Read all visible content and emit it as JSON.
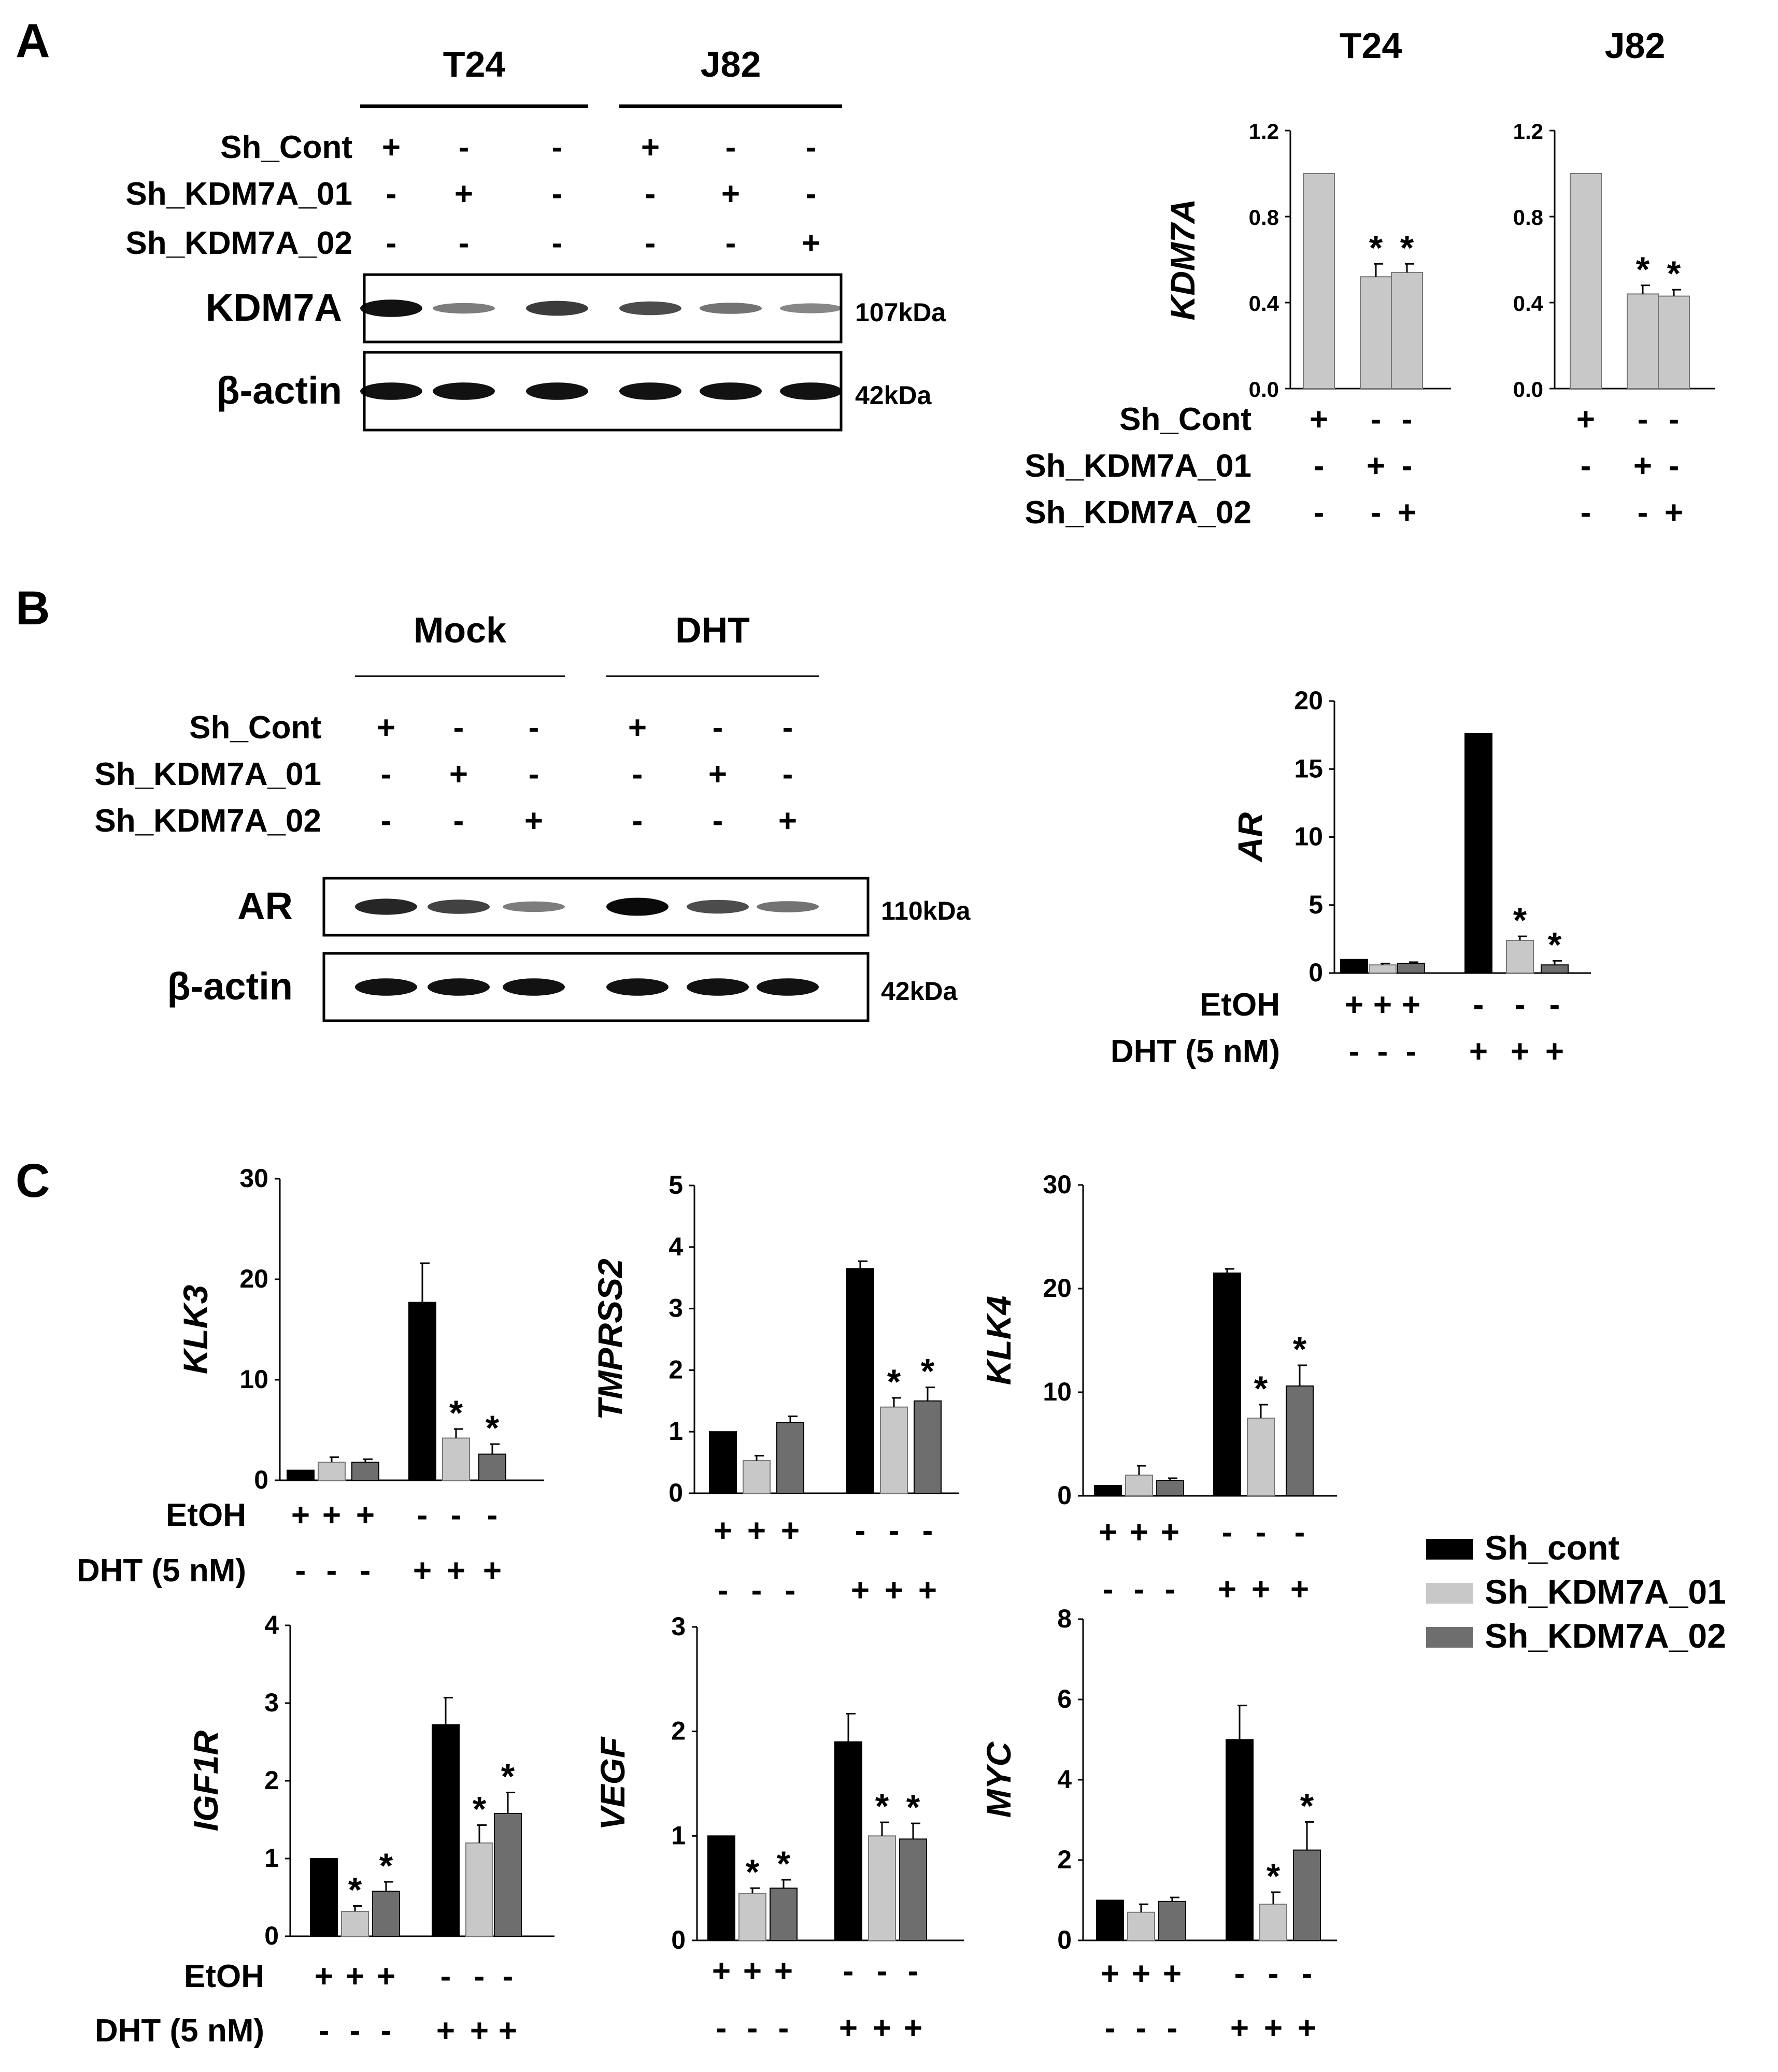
{
  "panels": {
    "A": {
      "letter": "A",
      "blot": {
        "groups": [
          {
            "label": "T24",
            "lanes": [
              0,
              1,
              2
            ]
          },
          {
            "label": "J82",
            "lanes": [
              3,
              4,
              5
            ]
          }
        ],
        "rows": [
          {
            "label": "Sh_Cont",
            "signs": [
              "+",
              "-",
              "-",
              "+",
              "-",
              "-"
            ]
          },
          {
            "label": "Sh_KDM7A_01",
            "signs": [
              "-",
              "+",
              "-",
              "-",
              "+",
              "-"
            ]
          },
          {
            "label": "Sh_KDM7A_02",
            "signs": [
              "-",
              "-",
              "-",
              "-",
              "-",
              "+"
            ]
          }
        ],
        "bands": [
          {
            "label": "KDM7A",
            "size": "107kDa",
            "intensity": [
              0.9,
              0.35,
              0.7,
              0.6,
              0.4,
              0.3
            ]
          },
          {
            "label": "β-actin",
            "size": "42kDa",
            "intensity": [
              0.9,
              0.9,
              0.9,
              0.9,
              0.9,
              0.9
            ]
          }
        ]
      }
    },
    "B": {
      "letter": "B",
      "blot": {
        "groups": [
          {
            "label": "Mock",
            "lanes": [
              0,
              1,
              2
            ]
          },
          {
            "label": "DHT",
            "lanes": [
              3,
              4,
              5
            ]
          }
        ],
        "rows": [
          {
            "label": "Sh_Cont",
            "signs": [
              "+",
              "-",
              "-",
              "+",
              "-",
              "-"
            ]
          },
          {
            "label": "Sh_KDM7A_01",
            "signs": [
              "-",
              "+",
              "-",
              "-",
              "+",
              "-"
            ]
          },
          {
            "label": "Sh_KDM7A_02",
            "signs": [
              "-",
              "-",
              "+",
              "-",
              "-",
              "+"
            ]
          }
        ],
        "bands": [
          {
            "label": "AR",
            "size": "110kDa",
            "intensity": [
              0.8,
              0.65,
              0.35,
              0.95,
              0.6,
              0.4
            ]
          },
          {
            "label": "β-actin",
            "size": "42kDa",
            "intensity": [
              0.9,
              0.9,
              0.9,
              0.9,
              0.9,
              0.9
            ]
          }
        ]
      }
    },
    "C": {
      "letter": "C"
    }
  },
  "treatments": {
    "sh_a": {
      "rows": [
        {
          "label": "Sh_Cont",
          "signs": [
            "+",
            "-",
            "-"
          ]
        },
        {
          "label": "Sh_KDM7A_01",
          "signs": [
            "-",
            "+",
            "-"
          ]
        },
        {
          "label": "Sh_KDM7A_02",
          "signs": [
            "-",
            "-",
            "+"
          ]
        }
      ]
    },
    "etoh_dht": {
      "rows": [
        {
          "label": "EtOH",
          "signs": [
            "+",
            "+",
            "+",
            "-",
            "-",
            "-"
          ]
        },
        {
          "label": "DHT (5 nM)",
          "signs": [
            "-",
            "-",
            "-",
            "+",
            "+",
            "+"
          ]
        }
      ]
    }
  },
  "legend": {
    "entries": [
      {
        "label": "Sh_cont",
        "color": "#000000"
      },
      {
        "label": "Sh_KDM7A_01",
        "color": "#c8c8c8"
      },
      {
        "label": "Sh_KDM7A_02",
        "color": "#6e6e6e"
      }
    ]
  },
  "chart_data": [
    {
      "id": "A_T24",
      "type": "bar",
      "title": "T24",
      "ylabel": "KDM7A",
      "ylim": [
        0,
        1.2
      ],
      "yticks": [
        "0.0",
        "0.4",
        "0.8",
        "1.2"
      ],
      "bars": [
        {
          "value": 1.0,
          "err": 0,
          "color": "#c8c8c8",
          "star": false
        },
        {
          "value": 0.52,
          "err": 0.06,
          "color": "#c8c8c8",
          "star": true
        },
        {
          "value": 0.54,
          "err": 0.04,
          "color": "#c8c8c8",
          "star": true
        }
      ]
    },
    {
      "id": "A_J82",
      "type": "bar",
      "title": "J82",
      "ylabel": "",
      "ylim": [
        0,
        1.2
      ],
      "yticks": [
        "0.0",
        "0.4",
        "0.8",
        "1.2"
      ],
      "bars": [
        {
          "value": 1.0,
          "err": 0,
          "color": "#c8c8c8",
          "star": false
        },
        {
          "value": 0.44,
          "err": 0.04,
          "color": "#c8c8c8",
          "star": true
        },
        {
          "value": 0.43,
          "err": 0.03,
          "color": "#c8c8c8",
          "star": true
        }
      ]
    },
    {
      "id": "B_AR",
      "type": "bar",
      "title": "",
      "ylabel": "AR",
      "ylim": [
        0,
        20
      ],
      "yticks": [
        "0",
        "5",
        "10",
        "15",
        "20"
      ],
      "bars": [
        {
          "value": 1.0,
          "err": 0,
          "color": "#000000",
          "star": false
        },
        {
          "value": 0.6,
          "err": 0.1,
          "color": "#c8c8c8",
          "star": false
        },
        {
          "value": 0.7,
          "err": 0.1,
          "color": "#6e6e6e",
          "star": false
        },
        {
          "value": 17.6,
          "err": 0,
          "color": "#000000",
          "star": false
        },
        {
          "value": 2.4,
          "err": 0.3,
          "color": "#c8c8c8",
          "star": true
        },
        {
          "value": 0.6,
          "err": 0.3,
          "color": "#6e6e6e",
          "star": true
        }
      ]
    },
    {
      "id": "C_KLK3",
      "type": "bar",
      "title": "",
      "ylabel": "KLK3",
      "ylim": [
        0,
        30
      ],
      "yticks": [
        "0",
        "10",
        "20",
        "30"
      ],
      "bars": [
        {
          "value": 1.0,
          "err": 0,
          "color": "#000000",
          "star": false
        },
        {
          "value": 1.8,
          "err": 0.5,
          "color": "#c8c8c8",
          "star": false
        },
        {
          "value": 1.8,
          "err": 0.3,
          "color": "#6e6e6e",
          "star": false
        },
        {
          "value": 17.7,
          "err": 3.9,
          "color": "#000000",
          "star": false
        },
        {
          "value": 4.2,
          "err": 0.9,
          "color": "#c8c8c8",
          "star": true
        },
        {
          "value": 2.6,
          "err": 1.0,
          "color": "#6e6e6e",
          "star": true
        }
      ]
    },
    {
      "id": "C_TMPRSS2",
      "type": "bar",
      "title": "",
      "ylabel": "TMPRSS2",
      "ylim": [
        0,
        5
      ],
      "yticks": [
        "0",
        "1",
        "2",
        "3",
        "4",
        "5"
      ],
      "bars": [
        {
          "value": 1.0,
          "err": 0,
          "color": "#000000",
          "star": false
        },
        {
          "value": 0.53,
          "err": 0.08,
          "color": "#c8c8c8",
          "star": false
        },
        {
          "value": 1.15,
          "err": 0.1,
          "color": "#6e6e6e",
          "star": false
        },
        {
          "value": 3.65,
          "err": 0.12,
          "color": "#000000",
          "star": false
        },
        {
          "value": 1.4,
          "err": 0.15,
          "color": "#c8c8c8",
          "star": true
        },
        {
          "value": 1.5,
          "err": 0.22,
          "color": "#6e6e6e",
          "star": true
        }
      ]
    },
    {
      "id": "C_KLK4",
      "type": "bar",
      "title": "",
      "ylabel": "KLK4",
      "ylim": [
        0,
        30
      ],
      "yticks": [
        "0",
        "10",
        "20",
        "30"
      ],
      "bars": [
        {
          "value": 1.0,
          "err": 0,
          "color": "#000000",
          "star": false
        },
        {
          "value": 2.0,
          "err": 0.9,
          "color": "#c8c8c8",
          "star": false
        },
        {
          "value": 1.5,
          "err": 0.2,
          "color": "#6e6e6e",
          "star": false
        },
        {
          "value": 21.5,
          "err": 0.4,
          "color": "#000000",
          "star": false
        },
        {
          "value": 7.5,
          "err": 1.3,
          "color": "#c8c8c8",
          "star": true
        },
        {
          "value": 10.6,
          "err": 2.0,
          "color": "#6e6e6e",
          "star": true
        }
      ]
    },
    {
      "id": "C_IGF1R",
      "type": "bar",
      "title": "",
      "ylabel": "IGF1R",
      "ylim": [
        0,
        4
      ],
      "yticks": [
        "0",
        "1",
        "2",
        "3",
        "4"
      ],
      "bars": [
        {
          "value": 1.0,
          "err": 0,
          "color": "#000000",
          "star": false
        },
        {
          "value": 0.32,
          "err": 0.07,
          "color": "#c8c8c8",
          "star": true
        },
        {
          "value": 0.58,
          "err": 0.12,
          "color": "#6e6e6e",
          "star": true
        },
        {
          "value": 2.72,
          "err": 0.35,
          "color": "#000000",
          "star": false
        },
        {
          "value": 1.2,
          "err": 0.23,
          "color": "#c8c8c8",
          "star": true
        },
        {
          "value": 1.58,
          "err": 0.27,
          "color": "#6e6e6e",
          "star": true
        }
      ]
    },
    {
      "id": "C_VEGF",
      "type": "bar",
      "title": "",
      "ylabel": "VEGF",
      "ylim": [
        0,
        3
      ],
      "yticks": [
        "0",
        "1",
        "2",
        "3"
      ],
      "bars": [
        {
          "value": 1.0,
          "err": 0,
          "color": "#000000",
          "star": false
        },
        {
          "value": 0.45,
          "err": 0.05,
          "color": "#c8c8c8",
          "star": true
        },
        {
          "value": 0.5,
          "err": 0.08,
          "color": "#6e6e6e",
          "star": true
        },
        {
          "value": 1.9,
          "err": 0.27,
          "color": "#000000",
          "star": false
        },
        {
          "value": 1.0,
          "err": 0.13,
          "color": "#c8c8c8",
          "star": true
        },
        {
          "value": 0.97,
          "err": 0.15,
          "color": "#6e6e6e",
          "star": true
        }
      ]
    },
    {
      "id": "C_MYC",
      "type": "bar",
      "title": "",
      "ylabel": "MYC",
      "ylim": [
        0,
        8
      ],
      "yticks": [
        "0",
        "2",
        "4",
        "6",
        "8"
      ],
      "bars": [
        {
          "value": 1.0,
          "err": 0,
          "color": "#000000",
          "star": false
        },
        {
          "value": 0.7,
          "err": 0.2,
          "color": "#c8c8c8",
          "star": false
        },
        {
          "value": 0.97,
          "err": 0.1,
          "color": "#6e6e6e",
          "star": false
        },
        {
          "value": 5.0,
          "err": 0.85,
          "color": "#000000",
          "star": false
        },
        {
          "value": 0.9,
          "err": 0.3,
          "color": "#c8c8c8",
          "star": true
        },
        {
          "value": 2.25,
          "err": 0.7,
          "color": "#6e6e6e",
          "star": true
        }
      ]
    }
  ]
}
